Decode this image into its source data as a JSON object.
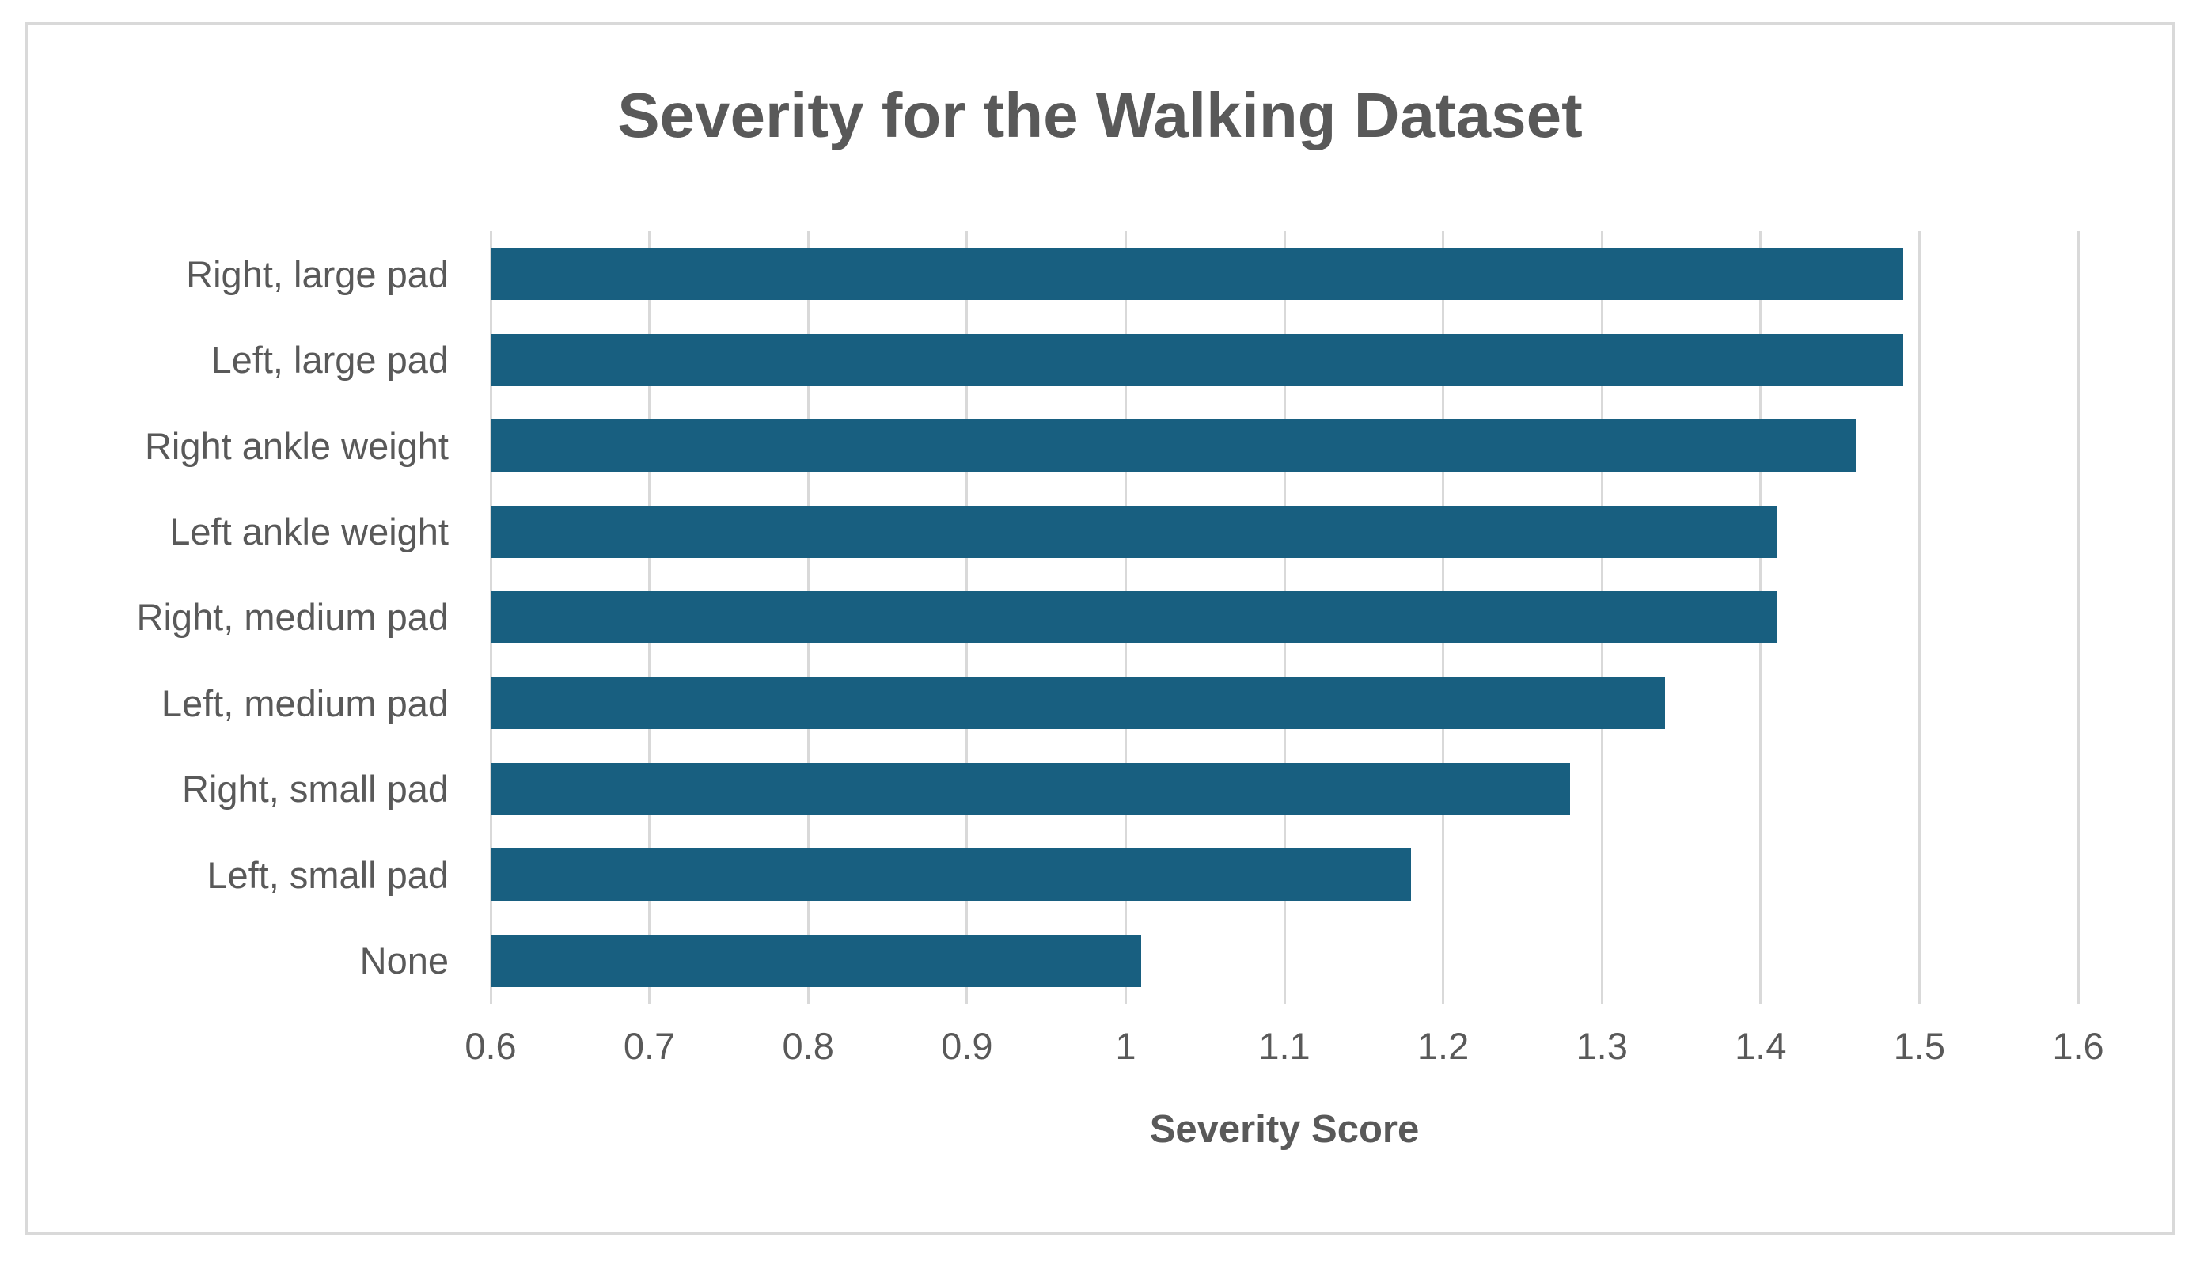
{
  "chart": {
    "title": "Severity for the Walking Dataset",
    "x_axis_title": "Severity Score"
  },
  "chart_data": {
    "type": "bar",
    "orientation": "horizontal",
    "title": "Severity for the Walking Dataset",
    "xlabel": "Severity Score",
    "ylabel": "",
    "categories": [
      "Right, large pad",
      "Left, large pad",
      "Right ankle weight",
      "Left ankle weight",
      "Right, medium pad",
      "Left, medium pad",
      "Right, small pad",
      "Left, small pad",
      "None"
    ],
    "values": [
      1.49,
      1.49,
      1.46,
      1.41,
      1.41,
      1.34,
      1.28,
      1.18,
      1.01
    ],
    "xlim": [
      0.6,
      1.6
    ],
    "xticks": [
      0.6,
      0.7,
      0.8,
      0.9,
      1,
      1.1,
      1.2,
      1.3,
      1.4,
      1.5,
      1.6
    ],
    "xtick_labels": [
      "0.6",
      "0.7",
      "0.8",
      "0.9",
      "1",
      "1.1",
      "1.2",
      "1.3",
      "1.4",
      "1.5",
      "1.6"
    ],
    "grid": true,
    "legend": false,
    "colors": {
      "bar": "#185F80",
      "text": "#595959",
      "gridline": "#D9D9D9",
      "border": "#D9D9D9",
      "background": "#FFFFFF"
    }
  }
}
